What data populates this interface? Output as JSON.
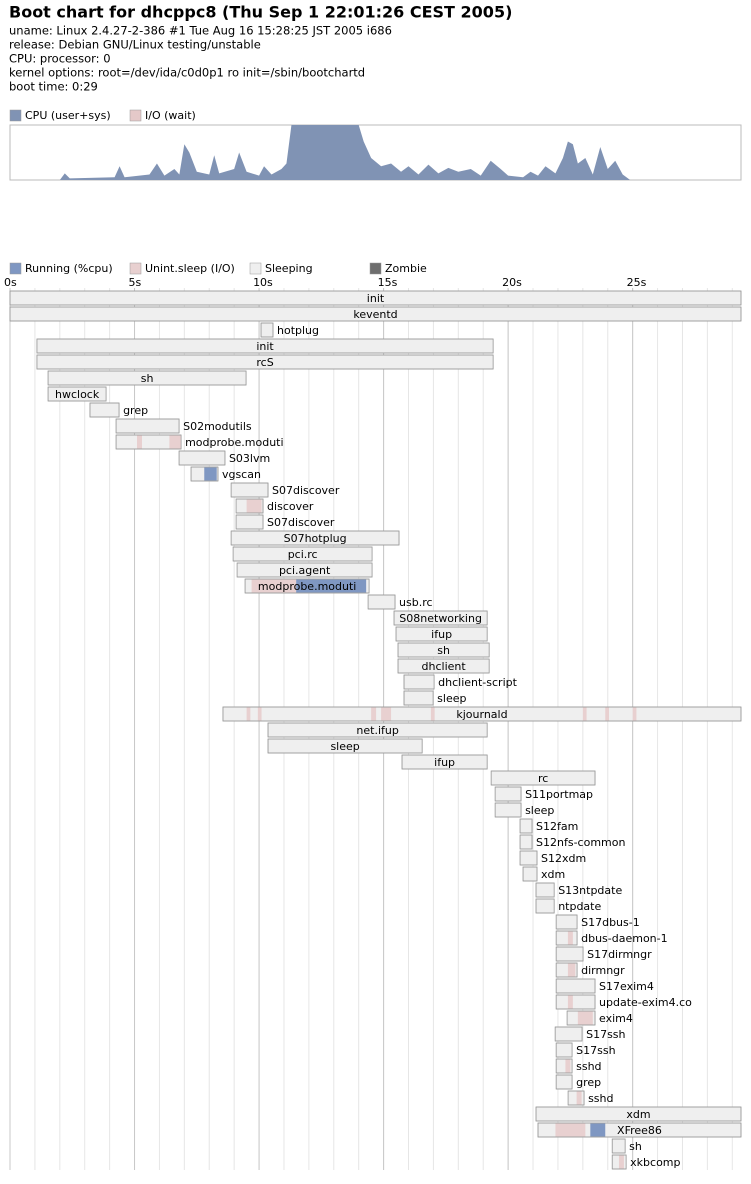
{
  "header": {
    "title": "Boot chart for dhcppc8 (Thu Sep  1 22:01:26 CEST 2005)",
    "lines": [
      "uname: Linux 2.4.27-2-386 #1 Tue Aug 16 15:28:25 JST 2005 i686",
      "release: Debian GNU/Linux testing/unstable",
      "CPU: processor: 0",
      "kernel options: root=/dev/ida/c0d0p1 ro init=/sbin/bootchartd",
      "boot time: 0:29"
    ]
  },
  "chart_data": [
    {
      "type": "area",
      "legend": [
        {
          "name": "CPU (user+sys)",
          "color": "#8093b4"
        },
        {
          "name": "I/O (wait)",
          "color": "#e5c9c9"
        }
      ],
      "x": [
        0,
        2.0,
        2.2,
        2.4,
        4.2,
        4.4,
        4.6,
        5.6,
        5.9,
        6.2,
        6.6,
        6.8,
        7.0,
        7.2,
        7.5,
        8.0,
        8.2,
        8.4,
        9.0,
        9.2,
        9.5,
        10.0,
        10.2,
        10.5,
        10.9,
        11.1,
        11.3,
        11.5,
        14.0,
        14.2,
        14.5,
        14.9,
        15.3,
        15.7,
        16.0,
        16.4,
        16.8,
        17.2,
        17.6,
        18.0,
        18.5,
        18.9,
        19.3,
        19.7,
        20.0,
        20.6,
        20.9,
        21.2,
        21.5,
        21.9,
        22.2,
        22.4,
        22.6,
        22.8,
        23.1,
        23.4,
        23.7,
        24.0,
        24.3,
        24.6,
        24.9,
        29.35
      ],
      "values": [
        0,
        0,
        12,
        3,
        5,
        25,
        5,
        10,
        30,
        8,
        20,
        10,
        65,
        50,
        15,
        10,
        45,
        12,
        20,
        50,
        15,
        8,
        25,
        10,
        20,
        30,
        100,
        100,
        100,
        70,
        40,
        25,
        30,
        15,
        25,
        10,
        28,
        12,
        22,
        15,
        20,
        8,
        35,
        20,
        8,
        5,
        15,
        8,
        25,
        12,
        40,
        70,
        65,
        30,
        40,
        10,
        60,
        20,
        35,
        10,
        0,
        0
      ],
      "ylim": [
        0,
        100
      ],
      "xlim": [
        0,
        29.35
      ]
    },
    {
      "type": "gantt",
      "legend": [
        {
          "name": "Running (%cpu)",
          "color": "#7f97c2"
        },
        {
          "name": "Unint.sleep (I/O)",
          "color": "#e8d0d0"
        },
        {
          "name": "Sleeping",
          "color": "#efefef"
        },
        {
          "name": "Zombie",
          "color": "#6e6e6e"
        }
      ],
      "xlim": [
        0,
        29.35
      ],
      "grid_step": 1,
      "xticks": [
        {
          "value": 0,
          "label": "0s"
        },
        {
          "value": 5,
          "label": "5s"
        },
        {
          "value": 10,
          "label": "10s"
        },
        {
          "value": 15,
          "label": "15s"
        },
        {
          "value": 20,
          "label": "20s"
        },
        {
          "value": 25,
          "label": "25s"
        }
      ],
      "processes": [
        {
          "name": "init",
          "start": 0,
          "end": 29.35
        },
        {
          "name": "keventd",
          "start": 0,
          "end": 29.35
        },
        {
          "name": "hotplug",
          "start": 10.08,
          "end": 10.56
        },
        {
          "name": "init",
          "start": 1.08,
          "end": 19.4
        },
        {
          "name": "rcS",
          "start": 1.08,
          "end": 19.4
        },
        {
          "name": "sh",
          "start": 1.53,
          "end": 9.48
        },
        {
          "name": "hwclock",
          "start": 1.53,
          "end": 3.86
        },
        {
          "name": "grep",
          "start": 3.21,
          "end": 4.38
        },
        {
          "name": "S02modutils",
          "start": 4.26,
          "end": 6.79
        },
        {
          "name": "modprobe.moduti",
          "start": 4.26,
          "end": 6.87,
          "io": [
            [
              5.1,
              5.3
            ],
            [
              6.4,
              6.87
            ]
          ]
        },
        {
          "name": "S03lvm",
          "start": 6.79,
          "end": 8.63
        },
        {
          "name": "vgscan",
          "start": 7.27,
          "end": 8.35,
          "running": [
            [
              7.8,
              8.3
            ]
          ]
        },
        {
          "name": "S07discover",
          "start": 8.88,
          "end": 10.36
        },
        {
          "name": "discover",
          "start": 9.08,
          "end": 10.16,
          "io": [
            [
              9.5,
              10.1
            ]
          ]
        },
        {
          "name": "S07discover",
          "start": 9.08,
          "end": 10.16
        },
        {
          "name": "S07hotplug",
          "start": 8.88,
          "end": 15.62
        },
        {
          "name": "pci.rc",
          "start": 8.96,
          "end": 14.54
        },
        {
          "name": "pci.agent",
          "start": 9.12,
          "end": 14.54
        },
        {
          "name": "modprobe.moduti",
          "start": 9.44,
          "end": 14.42,
          "io": [
            [
              9.7,
              11.49
            ]
          ],
          "running": [
            [
              11.49,
              14.3
            ]
          ]
        },
        {
          "name": "usb.rc",
          "start": 14.38,
          "end": 15.46
        },
        {
          "name": "S08networking",
          "start": 15.42,
          "end": 19.16
        },
        {
          "name": "ifup",
          "start": 15.5,
          "end": 19.16
        },
        {
          "name": "sh",
          "start": 15.58,
          "end": 19.24
        },
        {
          "name": "dhclient",
          "start": 15.58,
          "end": 19.24
        },
        {
          "name": "dhclient-script",
          "start": 15.82,
          "end": 17.03
        },
        {
          "name": "sleep",
          "start": 15.82,
          "end": 16.99
        },
        {
          "name": "kjournald",
          "start": 8.55,
          "end": 29.35,
          "io": [
            [
              9.5,
              9.65
            ],
            [
              9.95,
              10.1
            ],
            [
              14.5,
              14.7
            ],
            [
              14.9,
              15.3
            ],
            [
              16.9,
              17.05
            ],
            [
              23.0,
              23.15
            ],
            [
              23.9,
              24.05
            ],
            [
              25.0,
              25.15
            ]
          ]
        },
        {
          "name": "net.ifup",
          "start": 10.36,
          "end": 19.16
        },
        {
          "name": "sleep",
          "start": 10.36,
          "end": 16.55
        },
        {
          "name": "ifup",
          "start": 15.74,
          "end": 19.16
        },
        {
          "name": "rc",
          "start": 19.32,
          "end": 23.49
        },
        {
          "name": "S11portmap",
          "start": 19.48,
          "end": 20.52
        },
        {
          "name": "sleep",
          "start": 19.48,
          "end": 20.52
        },
        {
          "name": "S12fam",
          "start": 20.48,
          "end": 20.96
        },
        {
          "name": "S12nfs-common",
          "start": 20.48,
          "end": 20.96
        },
        {
          "name": "S12xdm",
          "start": 20.48,
          "end": 21.16
        },
        {
          "name": "xdm",
          "start": 20.6,
          "end": 21.16
        },
        {
          "name": "S13ntpdate",
          "start": 21.12,
          "end": 21.85
        },
        {
          "name": "ntpdate",
          "start": 21.12,
          "end": 21.85
        },
        {
          "name": "S17dbus-1",
          "start": 21.93,
          "end": 22.77
        },
        {
          "name": "dbus-daemon-1",
          "start": 21.93,
          "end": 22.77,
          "io": [
            [
              22.4,
              22.6
            ]
          ]
        },
        {
          "name": "S17dirmngr",
          "start": 21.93,
          "end": 23.01
        },
        {
          "name": "dirmngr",
          "start": 21.93,
          "end": 22.77,
          "io": [
            [
              22.4,
              22.7
            ]
          ]
        },
        {
          "name": "S17exim4",
          "start": 21.93,
          "end": 23.49
        },
        {
          "name": "update-exim4.co",
          "start": 21.93,
          "end": 23.49,
          "io": [
            [
              22.4,
              22.6
            ]
          ]
        },
        {
          "name": "exim4",
          "start": 22.37,
          "end": 23.49,
          "io": [
            [
              22.8,
              23.4
            ]
          ]
        },
        {
          "name": "S17ssh",
          "start": 21.89,
          "end": 22.97
        },
        {
          "name": "S17ssh",
          "start": 21.93,
          "end": 22.57
        },
        {
          "name": "sshd",
          "start": 21.93,
          "end": 22.57,
          "io": [
            [
              22.3,
              22.5
            ]
          ]
        },
        {
          "name": "grep",
          "start": 21.93,
          "end": 22.57
        },
        {
          "name": "sshd",
          "start": 22.41,
          "end": 23.05,
          "io": [
            [
              22.75,
              22.95
            ]
          ]
        },
        {
          "name": "xdm",
          "start": 21.12,
          "end": 29.35
        },
        {
          "name": "XFree86",
          "start": 21.2,
          "end": 29.35,
          "io": [
            [
              21.9,
              23.1
            ]
          ],
          "running": [
            [
              23.3,
              23.9
            ]
          ]
        },
        {
          "name": "sh",
          "start": 24.18,
          "end": 24.7
        },
        {
          "name": "xkbcomp",
          "start": 24.18,
          "end": 24.74,
          "io": [
            [
              24.45,
              24.65
            ]
          ]
        }
      ]
    }
  ]
}
